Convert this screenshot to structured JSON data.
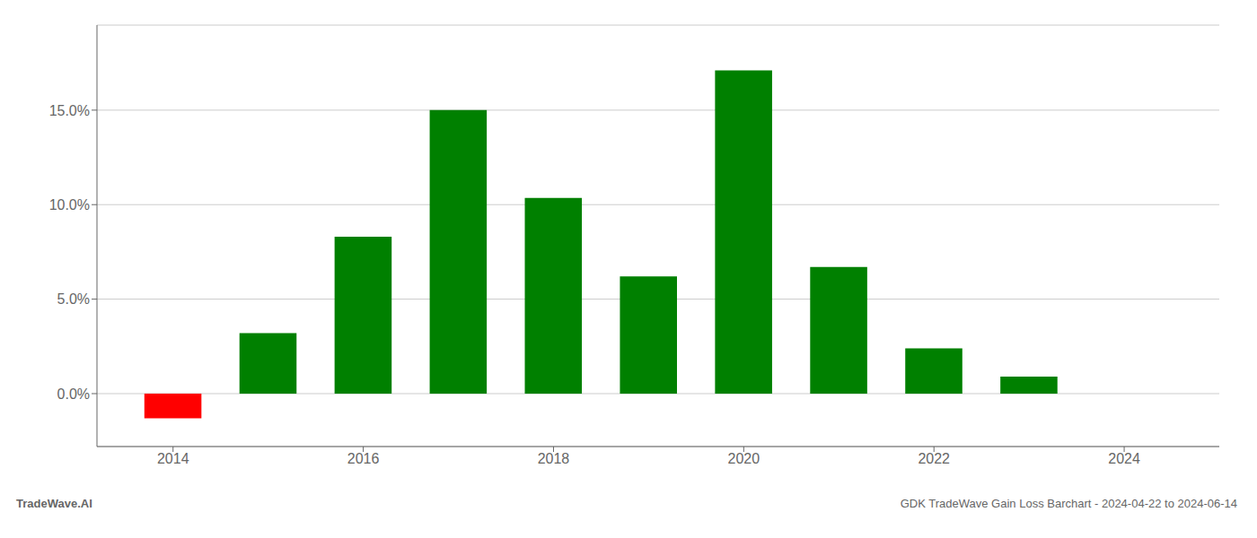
{
  "chart_data": {
    "type": "bar",
    "x": [
      2014,
      2015,
      2016,
      2017,
      2018,
      2019,
      2020,
      2021,
      2022,
      2023
    ],
    "values": [
      -1.3,
      3.2,
      8.3,
      15.0,
      10.35,
      6.2,
      17.1,
      6.7,
      2.4,
      0.9
    ],
    "colors": [
      "#ff0000",
      "#008000",
      "#008000",
      "#008000",
      "#008000",
      "#008000",
      "#008000",
      "#008000",
      "#008000",
      "#008000"
    ],
    "xlim": [
      2013.2,
      2025.0
    ],
    "xticks": [
      2014,
      2016,
      2018,
      2020,
      2022,
      2024
    ],
    "ylim": [
      -2.8,
      19.5
    ],
    "yticks": [
      {
        "value": 0.0,
        "label": "0.0%"
      },
      {
        "value": 5.0,
        "label": "5.0%"
      },
      {
        "value": 10.0,
        "label": "10.0%"
      },
      {
        "value": 15.0,
        "label": "15.0%"
      }
    ],
    "grid": true,
    "annotations": [
      "TradeWave.AI",
      "GDK TradeWave Gain Loss Barchart - 2024-04-22 to 2024-06-14"
    ]
  }
}
